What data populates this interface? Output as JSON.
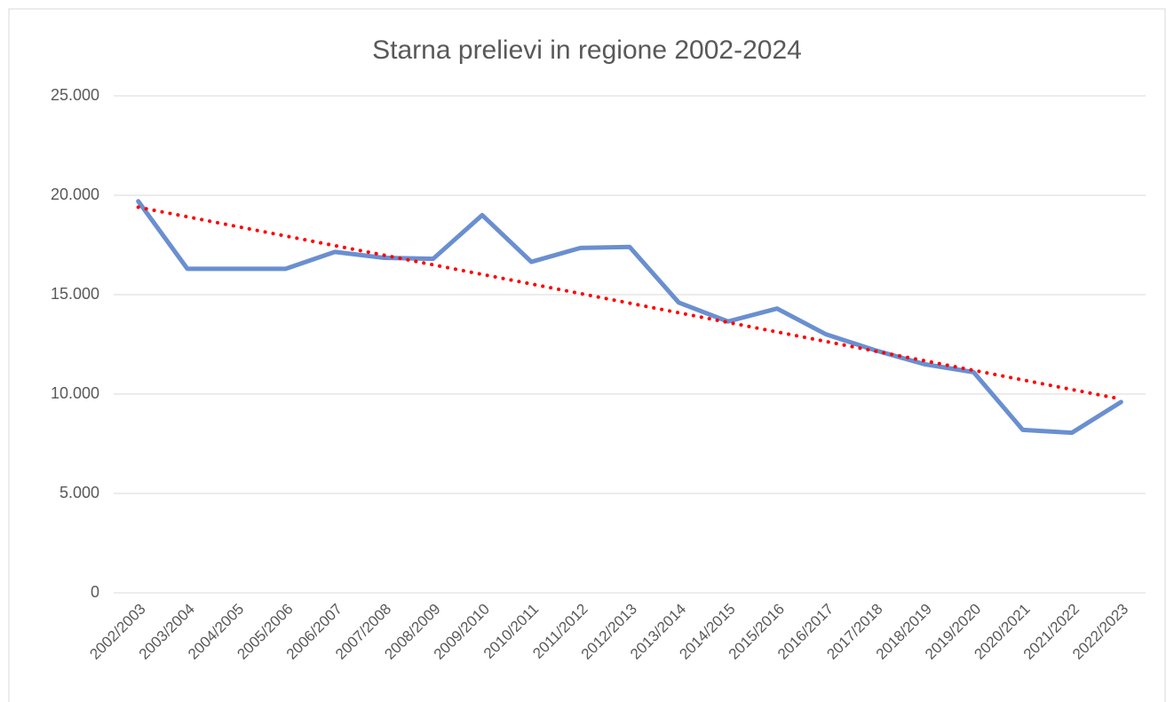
{
  "chart_data": {
    "type": "line",
    "title": "Starna prelievi in regione 2002-2024",
    "categories": [
      "2002/2003",
      "2003/2004",
      "2004/2005",
      "2005/2006",
      "2006/2007",
      "2007/2008",
      "2008/2009",
      "2009/2010",
      "2010/2011",
      "2011/2012",
      "2012/2013",
      "2013/2014",
      "2014/2015",
      "2015/2016",
      "2016/2017",
      "2017/2018",
      "2018/2019",
      "2019/2020",
      "2020/2021",
      "2021/2022",
      "2022/2023"
    ],
    "values": [
      19700,
      16300,
      16300,
      16300,
      17150,
      16850,
      16800,
      19000,
      16650,
      17350,
      17400,
      14600,
      13650,
      14300,
      13000,
      12200,
      11500,
      11100,
      8200,
      8050,
      9600
    ],
    "color": "#6a8fd0",
    "trendline": {
      "type": "linear",
      "color": "#ff0000"
    },
    "ylim": [
      0,
      25000
    ],
    "yticks": [
      0,
      {
        "value": 5000,
        "label": "5.000"
      },
      {
        "value": 10000,
        "label": "10.000"
      },
      {
        "value": 15000,
        "label": "15.000"
      },
      {
        "value": 20000,
        "label": "20.000"
      },
      {
        "value": 25000,
        "label": "25.000"
      }
    ],
    "grid": true
  }
}
